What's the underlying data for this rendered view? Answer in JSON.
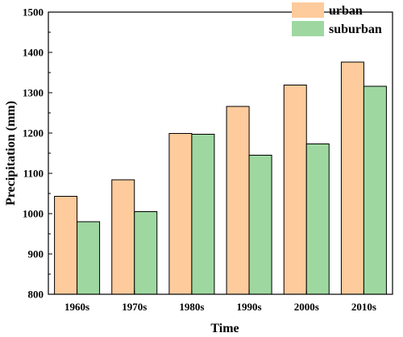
{
  "chart_data": {
    "type": "bar",
    "title": "",
    "xlabel": "Time",
    "ylabel": "Precipitation (mm)",
    "categories": [
      "1960s",
      "1970s",
      "1980s",
      "1990s",
      "2000s",
      "2010s"
    ],
    "series": [
      {
        "name": "urban",
        "values": [
          1043,
          1084,
          1199,
          1266,
          1319,
          1376
        ],
        "color": "#FDCB9C"
      },
      {
        "name": "suburban",
        "values": [
          980,
          1005,
          1197,
          1145,
          1173,
          1316
        ],
        "color": "#9ED8A0"
      }
    ],
    "ylim": [
      800,
      1500
    ],
    "yticks": [
      800,
      900,
      1000,
      1100,
      1200,
      1300,
      1400,
      1500
    ],
    "grid": false,
    "legend_position": "top-right"
  }
}
